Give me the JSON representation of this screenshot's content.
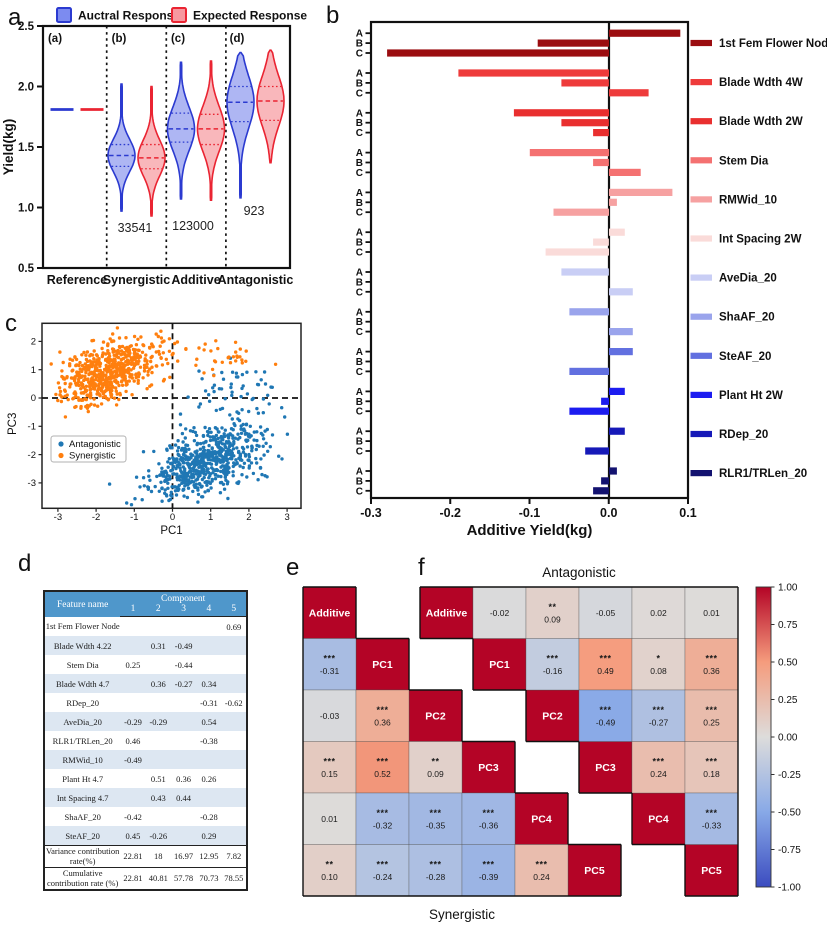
{
  "panels": {
    "letters": {
      "a": "a",
      "b": "b",
      "c": "c",
      "d": "d",
      "e": "e",
      "f": "f"
    }
  },
  "chart_data": [
    {
      "id": "a",
      "type": "violin",
      "ylabel": "Yield(kg)",
      "ylim": [
        0.5,
        2.5
      ],
      "yticks": [
        "0.5",
        "1.0",
        "1.5",
        "2.0",
        "2.5"
      ],
      "categories": [
        "Reference",
        "Synergistic",
        "Additive",
        "Antagonistic"
      ],
      "sublabels": [
        "(a)",
        "(b)",
        "(c)",
        "(d)"
      ],
      "counts": [
        {
          "text": "33541",
          "group": 1
        },
        {
          "text": "123000",
          "group": 2
        },
        {
          "text": "923",
          "group": 3
        }
      ],
      "legend": [
        {
          "label": "Auctral Response",
          "stroke": "#2b3ad0",
          "fill": "#7c8bf0"
        },
        {
          "label": "Expected Response",
          "stroke": "#ea2432",
          "fill": "#f7989f"
        }
      ],
      "series": [
        {
          "name": "Auctral Response",
          "stroke": "#2b3ad0",
          "fill": "#97a2f0",
          "violins": [
            {
              "min": 1.81,
              "q1": 1.81,
              "med": 1.81,
              "q3": 1.81,
              "max": 1.81
            },
            {
              "min": 0.97,
              "q1": 1.34,
              "med": 1.43,
              "q3": 1.52,
              "max": 2.02
            },
            {
              "min": 1.07,
              "q1": 1.54,
              "med": 1.65,
              "q3": 1.78,
              "max": 2.2
            },
            {
              "min": 1.08,
              "q1": 1.71,
              "med": 1.87,
              "q3": 2.0,
              "max": 2.28
            }
          ]
        },
        {
          "name": "Expected Response",
          "stroke": "#ea2432",
          "fill": "#f7a3a8",
          "violins": [
            {
              "min": 1.81,
              "q1": 1.81,
              "med": 1.81,
              "q3": 1.81,
              "max": 1.81
            },
            {
              "min": 0.93,
              "q1": 1.32,
              "med": 1.41,
              "q3": 1.52,
              "max": 2.0
            },
            {
              "min": 1.06,
              "q1": 1.52,
              "med": 1.65,
              "q3": 1.77,
              "max": 2.21
            },
            {
              "min": 1.37,
              "q1": 1.72,
              "med": 1.88,
              "q3": 2.0,
              "max": 2.3
            }
          ]
        }
      ]
    },
    {
      "id": "b",
      "type": "bar",
      "xlabel": "Additive Yield(kg)",
      "xlim": [
        -0.3,
        0.1
      ],
      "xticks": [
        "-0.3",
        "-0.2",
        "-0.1",
        "0.0",
        "0.1"
      ],
      "row_labels": [
        "A",
        "B",
        "C"
      ],
      "groups": [
        {
          "name": "1st Fem Flower Node",
          "color": "#9b0d10",
          "values": [
            0.09,
            -0.09,
            -0.28
          ]
        },
        {
          "name": "Blade Wdth 4W",
          "color": "#ee3b3b",
          "values": [
            -0.19,
            -0.06,
            0.05
          ]
        },
        {
          "name": "Blade Wdth 2W",
          "color": "#e92f2f",
          "values": [
            -0.12,
            -0.06,
            -0.02
          ]
        },
        {
          "name": "Stem Dia",
          "color": "#f47171",
          "values": [
            -0.1,
            -0.02,
            0.04
          ]
        },
        {
          "name": "RMWid_10",
          "color": "#f6a1a1",
          "values": [
            0.08,
            0.01,
            -0.07
          ]
        },
        {
          "name": "Int Spacing 2W",
          "color": "#fadbd9",
          "values": [
            0.02,
            -0.02,
            -0.08
          ]
        },
        {
          "name": "AveDia_20",
          "color": "#c9cef5",
          "values": [
            -0.06,
            0,
            0.03
          ]
        },
        {
          "name": "ShaAF_20",
          "color": "#9aa4ec",
          "values": [
            -0.05,
            0,
            0.03
          ]
        },
        {
          "name": "SteAF_20",
          "color": "#6270e0",
          "values": [
            0.03,
            0,
            -0.05
          ]
        },
        {
          "name": "Plant Ht 2W",
          "color": "#1c1cf0",
          "values": [
            0.02,
            -0.01,
            -0.05
          ]
        },
        {
          "name": "RDep_20",
          "color": "#1619b8",
          "values": [
            0.02,
            0,
            -0.03
          ]
        },
        {
          "name": "RLR1/TRLen_20",
          "color": "#131270",
          "values": [
            0.01,
            -0.01,
            -0.02
          ]
        }
      ]
    },
    {
      "id": "c",
      "type": "scatter",
      "xlabel": "PC1",
      "ylabel": "PC3",
      "xlim": [
        -3.25,
        3.05
      ],
      "ylim": [
        -3.85,
        2.6
      ],
      "xticks": [
        "-3",
        "-2",
        "-1",
        "0",
        "1",
        "2",
        "3"
      ],
      "yticks": [
        "-3",
        "-2",
        "-1",
        "0",
        "1",
        "2"
      ],
      "legend": [
        {
          "label": "Antagonistic",
          "color": "#1f77b4"
        },
        {
          "label": "Synergistic",
          "color": "#ff7f0e"
        }
      ],
      "clusters": [
        {
          "name": "Antagonistic",
          "color": "#1f77b4",
          "n": 640,
          "cx": 0.85,
          "cy": -2.25,
          "sx": 0.72,
          "sy": 0.62,
          "rho": 0.45,
          "seed": 11
        },
        {
          "name": "Antagonistic",
          "color": "#1f77b4",
          "n": 60,
          "cx": 1.55,
          "cy": 0.05,
          "sx": 0.55,
          "sy": 0.6,
          "rho": 0.2,
          "seed": 12
        },
        {
          "name": "Synergistic",
          "color": "#ff7f0e",
          "n": 600,
          "cx": -1.75,
          "cy": 0.85,
          "sx": 0.65,
          "sy": 0.58,
          "rho": 0.5,
          "seed": 13
        },
        {
          "name": "Synergistic",
          "color": "#ff7f0e",
          "n": 45,
          "cx": 0.9,
          "cy": 1.4,
          "sx": 0.78,
          "sy": 0.38,
          "rho": 0.1,
          "seed": 14
        }
      ]
    },
    {
      "id": "d",
      "type": "table",
      "header": {
        "feature": "Feature name",
        "component": "Component",
        "cols": [
          "1",
          "2",
          "3",
          "4",
          "5"
        ]
      },
      "rows": [
        {
          "name": "1st Fem Flower Node",
          "vals": [
            "",
            "",
            "",
            "",
            "0.69"
          ]
        },
        {
          "name": "Blade Wdth 4.22",
          "vals": [
            "",
            "0.31",
            "-0.49",
            "",
            ""
          ]
        },
        {
          "name": "Stem Dia",
          "vals": [
            "0.25",
            "",
            "-0.44",
            "",
            ""
          ]
        },
        {
          "name": "Blade Wdth 4.7",
          "vals": [
            "",
            "0.36",
            "-0.27",
            "0.34",
            ""
          ]
        },
        {
          "name": "RDep_20",
          "vals": [
            "",
            "",
            "",
            "-0.31",
            "-0.62"
          ]
        },
        {
          "name": "AveDia_20",
          "vals": [
            "-0.29",
            "-0.29",
            "",
            "0.54",
            ""
          ]
        },
        {
          "name": "RLR1/TRLen_20",
          "vals": [
            "0.46",
            "",
            "",
            "-0.38",
            ""
          ]
        },
        {
          "name": "RMWid_10",
          "vals": [
            "-0.49",
            "",
            "",
            "",
            ""
          ]
        },
        {
          "name": "Plant Ht 4.7",
          "vals": [
            "",
            "0.51",
            "0.36",
            "0.26",
            ""
          ]
        },
        {
          "name": "Int Spacing 4.7",
          "vals": [
            "",
            "0.43",
            "0.44",
            "",
            ""
          ]
        },
        {
          "name": "ShaAF_20",
          "vals": [
            "-0.42",
            "",
            "",
            "-0.28",
            ""
          ]
        },
        {
          "name": "SteAF_20",
          "vals": [
            "0.45",
            "-0.26",
            "",
            "0.29",
            ""
          ]
        }
      ],
      "footer": [
        {
          "name": "Variance contribution\nrate(%)",
          "vals": [
            "22.81",
            "18",
            "16.97",
            "12.95",
            "7.82"
          ]
        },
        {
          "name": "Cumulative\ncontribution rate (%)",
          "vals": [
            "22.81",
            "40.81",
            "57.78",
            "70.73",
            "78.55"
          ]
        }
      ]
    },
    {
      "id": "e",
      "type": "heatmap",
      "triangle": "lower",
      "labels": [
        "Additive",
        "PC1",
        "PC2",
        "PC3",
        "PC4",
        "PC5"
      ],
      "caption": "Synergistic",
      "caption_pos": "below",
      "cells": [
        {
          "r": 1,
          "c": 0,
          "v": -0.31,
          "s": "***"
        },
        {
          "r": 2,
          "c": 0,
          "v": -0.03,
          "s": ""
        },
        {
          "r": 2,
          "c": 1,
          "v": 0.36,
          "s": "***"
        },
        {
          "r": 3,
          "c": 0,
          "v": 0.15,
          "s": "***"
        },
        {
          "r": 3,
          "c": 1,
          "v": 0.52,
          "s": "***"
        },
        {
          "r": 3,
          "c": 2,
          "v": 0.09,
          "s": "**"
        },
        {
          "r": 4,
          "c": 0,
          "v": 0.01,
          "s": ""
        },
        {
          "r": 4,
          "c": 1,
          "v": -0.32,
          "s": "***"
        },
        {
          "r": 4,
          "c": 2,
          "v": -0.35,
          "s": "***"
        },
        {
          "r": 4,
          "c": 3,
          "v": -0.36,
          "s": "***"
        },
        {
          "r": 5,
          "c": 0,
          "v": 0.1,
          "s": "**"
        },
        {
          "r": 5,
          "c": 1,
          "v": -0.24,
          "s": "***"
        },
        {
          "r": 5,
          "c": 2,
          "v": -0.28,
          "s": "***"
        },
        {
          "r": 5,
          "c": 3,
          "v": -0.39,
          "s": "***"
        },
        {
          "r": 5,
          "c": 4,
          "v": 0.24,
          "s": "***"
        }
      ]
    },
    {
      "id": "f",
      "type": "heatmap",
      "triangle": "upper",
      "labels": [
        "Additive",
        "PC1",
        "PC2",
        "PC3",
        "PC4",
        "PC5"
      ],
      "caption": "Antagonistic",
      "caption_pos": "above",
      "cells": [
        {
          "r": 0,
          "c": 1,
          "v": -0.02,
          "s": ""
        },
        {
          "r": 0,
          "c": 2,
          "v": 0.09,
          "s": "**"
        },
        {
          "r": 0,
          "c": 3,
          "v": -0.05,
          "s": ""
        },
        {
          "r": 0,
          "c": 4,
          "v": 0.02,
          "s": ""
        },
        {
          "r": 0,
          "c": 5,
          "v": 0.01,
          "s": ""
        },
        {
          "r": 1,
          "c": 2,
          "v": -0.16,
          "s": "***"
        },
        {
          "r": 1,
          "c": 3,
          "v": 0.49,
          "s": "***"
        },
        {
          "r": 1,
          "c": 4,
          "v": 0.08,
          "s": "*"
        },
        {
          "r": 1,
          "c": 5,
          "v": 0.36,
          "s": "***"
        },
        {
          "r": 2,
          "c": 3,
          "v": -0.49,
          "s": "***"
        },
        {
          "r": 2,
          "c": 4,
          "v": -0.27,
          "s": "***"
        },
        {
          "r": 2,
          "c": 5,
          "v": 0.25,
          "s": "***"
        },
        {
          "r": 3,
          "c": 4,
          "v": 0.24,
          "s": "***"
        },
        {
          "r": 3,
          "c": 5,
          "v": 0.18,
          "s": "***"
        },
        {
          "r": 4,
          "c": 5,
          "v": -0.33,
          "s": "***"
        }
      ]
    },
    {
      "id": "cbar",
      "type": "colorbar",
      "ticks": [
        "1.00",
        "0.75",
        "0.50",
        "0.25",
        "0.00",
        "-0.25",
        "-0.50",
        "-0.75",
        "-1.00"
      ],
      "vmin": -1,
      "vmax": 1,
      "stops": [
        [
          -1,
          "#3b4cc0"
        ],
        [
          -0.5,
          "#88a9e7"
        ],
        [
          0,
          "#dddcdb"
        ],
        [
          0.5,
          "#f59c7d"
        ],
        [
          1,
          "#b40426"
        ]
      ]
    }
  ]
}
